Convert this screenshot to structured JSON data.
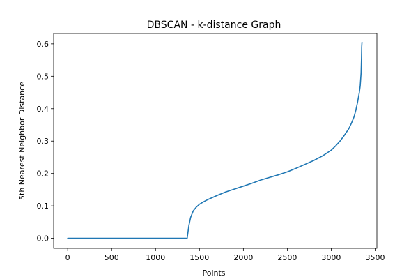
{
  "chart_data": {
    "type": "line",
    "title": "DBSCAN - k-distance Graph",
    "xlabel": "Points",
    "ylabel": "5th Nearest Neighbor Distance",
    "xlim": [
      -160,
      3520
    ],
    "ylim": [
      -0.031,
      0.632
    ],
    "xticks": [
      0,
      500,
      1000,
      1500,
      2000,
      2500,
      3000,
      3500
    ],
    "xtick_labels": [
      "0",
      "500",
      "1000",
      "1500",
      "2000",
      "2500",
      "3000",
      "3500"
    ],
    "yticks": [
      0.0,
      0.1,
      0.2,
      0.3,
      0.4,
      0.5,
      0.6
    ],
    "ytick_labels": [
      "0.0",
      "0.1",
      "0.2",
      "0.3",
      "0.4",
      "0.5",
      "0.6"
    ],
    "grid": false,
    "color": "#1f77b4",
    "series": [
      {
        "x": [
          0,
          1360,
          1370,
          1380,
          1400,
          1430,
          1460,
          1500,
          1550,
          1600,
          1700,
          1800,
          1900,
          2000,
          2100,
          2200,
          2300,
          2400,
          2500,
          2600,
          2700,
          2800,
          2900,
          3000,
          3050,
          3100,
          3150,
          3200,
          3230,
          3260,
          3280,
          3300,
          3320,
          3330,
          3335,
          3340,
          3343,
          3345,
          3347,
          3350
        ],
        "y": [
          0.0,
          0.0,
          0.02,
          0.04,
          0.065,
          0.085,
          0.095,
          0.105,
          0.113,
          0.12,
          0.132,
          0.143,
          0.152,
          0.161,
          0.17,
          0.18,
          0.188,
          0.196,
          0.205,
          0.216,
          0.228,
          0.24,
          0.254,
          0.272,
          0.285,
          0.3,
          0.318,
          0.338,
          0.355,
          0.375,
          0.395,
          0.42,
          0.45,
          0.47,
          0.49,
          0.51,
          0.54,
          0.56,
          0.59,
          0.605
        ]
      }
    ]
  }
}
